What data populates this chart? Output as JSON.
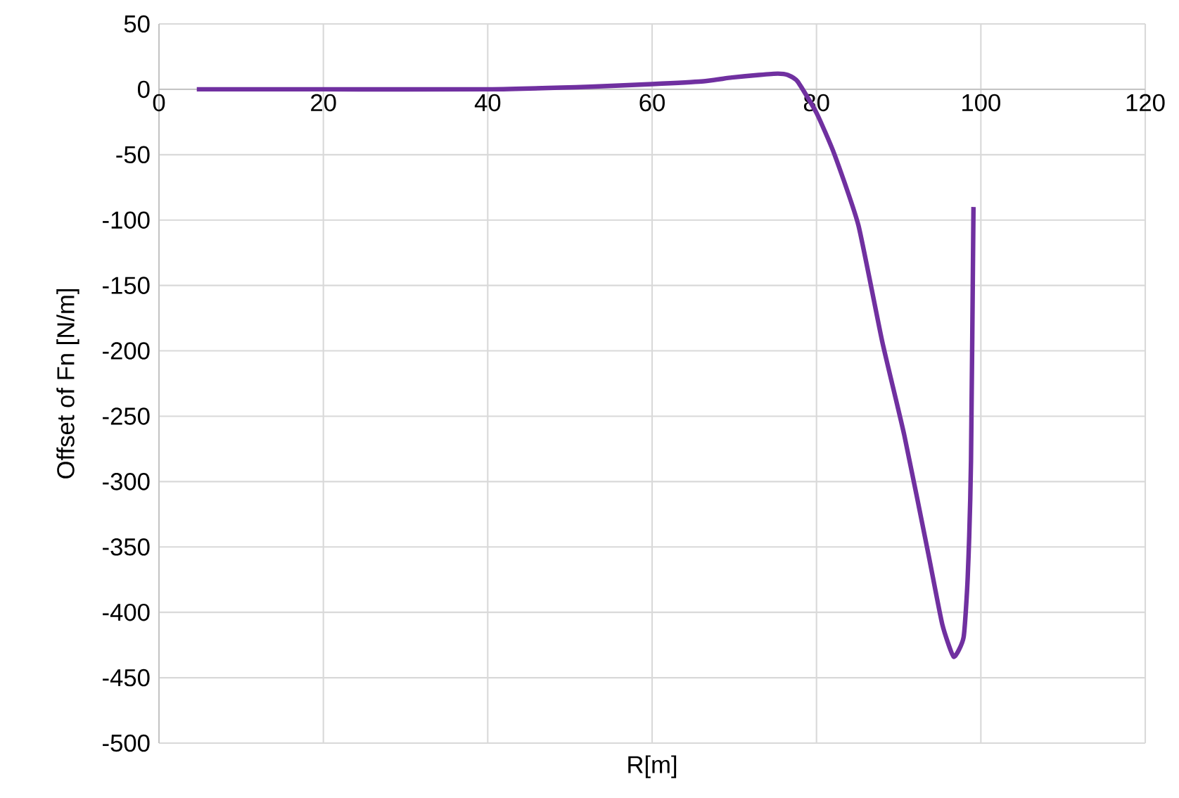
{
  "chart_data": {
    "type": "line",
    "xlabel": "R[m]",
    "ylabel": "Offset of Fn [N/m]",
    "xlim": [
      0,
      120
    ],
    "ylim": [
      -500,
      50
    ],
    "xticks": [
      0,
      20,
      40,
      60,
      80,
      100,
      120
    ],
    "yticks": [
      -500,
      -450,
      -400,
      -350,
      -300,
      -250,
      -200,
      -150,
      -100,
      -50,
      0,
      50
    ],
    "grid": true,
    "series": [
      {
        "color": "#7030a0",
        "x": [
          4.6,
          20,
          40,
          52.5,
          60,
          66,
          69.7,
          73,
          75.3,
          76.5,
          77.7,
          80,
          82.2,
          85.1,
          88,
          90.7,
          93.6,
          95.3,
          96.7,
          97.9,
          98.4,
          98.8,
          99.1
        ],
        "values": [
          0,
          0,
          0,
          2,
          4,
          6,
          9,
          11,
          12,
          11,
          6,
          -18,
          -50,
          -104,
          -193,
          -265,
          -355,
          -409,
          -434,
          -419,
          -373,
          -284,
          -90
        ]
      }
    ]
  }
}
